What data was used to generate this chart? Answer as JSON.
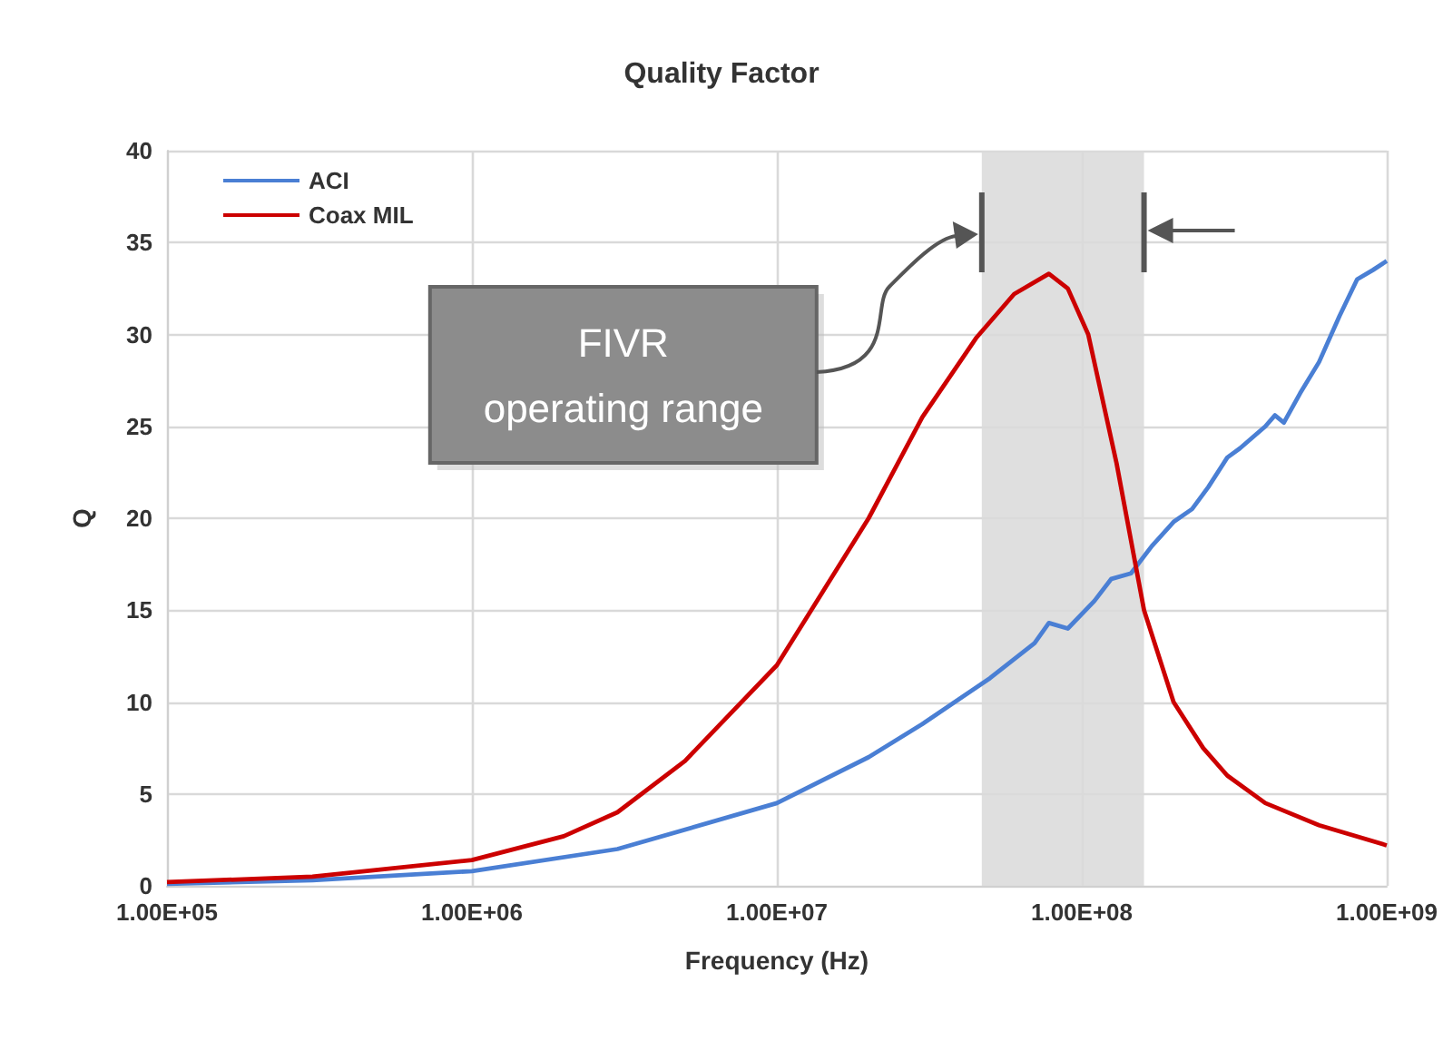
{
  "chart_data": {
    "type": "line",
    "title": "Quality Factor",
    "xlabel": "Frequency (Hz)",
    "ylabel": "Q",
    "series": [
      {
        "name": "ACI",
        "color": "#4a7fd4",
        "x": [
          100000.0,
          300000.0,
          1000000.0,
          3000000.0,
          10000000.0,
          20000000.0,
          30000000.0,
          50000000.0,
          70000000.0,
          78000000.0,
          90000000.0,
          110000000.0,
          125000000.0,
          145000000.0,
          170000000.0,
          200000000.0,
          230000000.0,
          260000000.0,
          300000000.0,
          330000000.0,
          400000000.0,
          430000000.0,
          460000000.0,
          520000000.0,
          600000000.0,
          700000000.0,
          800000000.0,
          900000000.0,
          1000000000.0
        ],
        "values": [
          0.1,
          0.3,
          0.8,
          2,
          4.5,
          7,
          8.8,
          11.3,
          13.2,
          14.3,
          14,
          15.5,
          16.7,
          17,
          18.5,
          19.8,
          20.5,
          21.7,
          23.3,
          23.8,
          25,
          25.6,
          25.2,
          26.8,
          28.5,
          31,
          33,
          33.5,
          34
        ]
      },
      {
        "name": "Coax MIL",
        "color": "#cc0000",
        "x": [
          100000.0,
          300000.0,
          1000000.0,
          2000000.0,
          3000000.0,
          5000000.0,
          10000000.0,
          20000000.0,
          30000000.0,
          45000000.0,
          60000000.0,
          78000000.0,
          90000000.0,
          105000000.0,
          130000000.0,
          160000000.0,
          200000000.0,
          250000000.0,
          300000000.0,
          400000000.0,
          600000000.0,
          1000000000.0
        ],
        "values": [
          0.2,
          0.5,
          1.4,
          2.7,
          4,
          6.8,
          12,
          20,
          25.5,
          29.8,
          32.2,
          33.3,
          32.5,
          30,
          23,
          15,
          10,
          7.5,
          6,
          4.5,
          3.3,
          2.2
        ]
      }
    ],
    "log": "x",
    "xlim": [
      100000.0,
      1000000000.0
    ],
    "xticks": [
      {
        "value": 100000.0,
        "label": "1.00E+05"
      },
      {
        "value": 1000000.0,
        "label": "1.00E+06"
      },
      {
        "value": 10000000.0,
        "label": "1.00E+07"
      },
      {
        "value": 100000000.0,
        "label": "1.00E+08"
      },
      {
        "value": 1000000000.0,
        "label": "1.00E+09"
      }
    ],
    "ylim": [
      0,
      40
    ],
    "yticks": [
      0,
      5,
      10,
      15,
      20,
      25,
      30,
      35,
      40
    ],
    "bands": [
      {
        "axis": "x",
        "from": 47000000.0,
        "to": 160000000.0,
        "color": "#d9d9d9"
      }
    ],
    "annotations": [
      "FIVR\noperating range"
    ],
    "grid": true,
    "legend": "top left",
    "marker": "none",
    "line_style": "solid"
  }
}
